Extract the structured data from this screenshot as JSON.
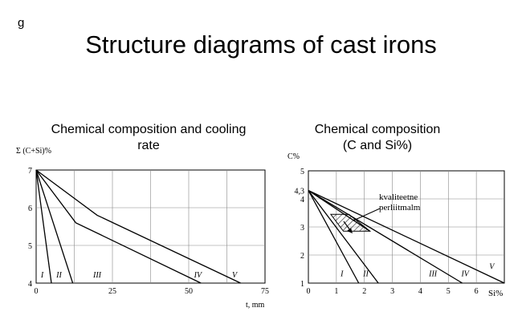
{
  "corner_label": "g",
  "title": "Structure diagrams of cast irons",
  "left_panel": {
    "subtitle_line1": "Chemical composition and cooling",
    "subtitle_line2": "rate",
    "ylabel": "Σ (C+Si)%",
    "xlabel": "t, mm"
  },
  "right_panel": {
    "subtitle_line1": "Chemical composition",
    "subtitle_line2": "(C and Si%)",
    "ylabel": "C%",
    "xlabel": "Si%",
    "annotation_line1": "kvaliteetne",
    "annotation_line2": "perliitmalm"
  },
  "chart_data": [
    {
      "type": "line",
      "title": "Chemical composition and cooling rate",
      "xlabel": "t, mm",
      "ylabel": "Σ (C+Si)%",
      "xlim": [
        0,
        75
      ],
      "ylim": [
        4,
        7
      ],
      "xticks": [
        0,
        25,
        50,
        75
      ],
      "yticks": [
        4,
        5,
        6,
        7
      ],
      "grid": true,
      "series": [
        {
          "points": [
            [
              0,
              7
            ],
            [
              5,
              4
            ]
          ]
        },
        {
          "points": [
            [
              0,
              7
            ],
            [
              12,
              4
            ]
          ]
        },
        {
          "points": [
            [
              0,
              7
            ],
            [
              13,
              5.6
            ],
            [
              54,
              4
            ]
          ]
        },
        {
          "points": [
            [
              0,
              7
            ],
            [
              20,
              5.8
            ],
            [
              67,
              4
            ]
          ]
        }
      ],
      "region_labels": [
        {
          "text": "I",
          "x": 2,
          "y": 4.15
        },
        {
          "text": "II",
          "x": 7.5,
          "y": 4.15
        },
        {
          "text": "III",
          "x": 20,
          "y": 4.15
        },
        {
          "text": "IV",
          "x": 53,
          "y": 4.15
        },
        {
          "text": "V",
          "x": 65,
          "y": 4.15
        }
      ]
    },
    {
      "type": "line",
      "title": "Chemical composition (C and Si%)",
      "xlabel": "Si%",
      "ylabel": "C%",
      "xlim": [
        0,
        7
      ],
      "ylim": [
        1,
        5
      ],
      "xticks": [
        0,
        1,
        2,
        3,
        4,
        5,
        6
      ],
      "yticks": [
        1,
        2,
        3,
        4,
        5
      ],
      "extra_ytick": {
        "label": "4,3",
        "value": 4.3
      },
      "grid": true,
      "series": [
        {
          "points": [
            [
              0,
              4.3
            ],
            [
              1.8,
              1
            ]
          ]
        },
        {
          "points": [
            [
              0,
              4.3
            ],
            [
              2.5,
              1
            ]
          ]
        },
        {
          "points": [
            [
              0,
              4.3
            ],
            [
              5.5,
              1
            ]
          ]
        },
        {
          "points": [
            [
              0,
              4.3
            ],
            [
              7,
              1
            ]
          ]
        },
        {
          "points": [
            [
              0,
              4.3
            ],
            [
              2.2,
              2.85
            ]
          ]
        }
      ],
      "region_labels": [
        {
          "text": "I",
          "x": 1.2,
          "y": 1.25
        },
        {
          "text": "II",
          "x": 2.05,
          "y": 1.25
        },
        {
          "text": "III",
          "x": 4.45,
          "y": 1.25
        },
        {
          "text": "IV",
          "x": 5.6,
          "y": 1.25
        },
        {
          "text": "V",
          "x": 6.55,
          "y": 1.5
        }
      ],
      "hatched_region": [
        [
          0.8,
          3.45
        ],
        [
          1.45,
          3.45
        ],
        [
          2.2,
          2.85
        ],
        [
          1.25,
          2.85
        ]
      ]
    }
  ]
}
